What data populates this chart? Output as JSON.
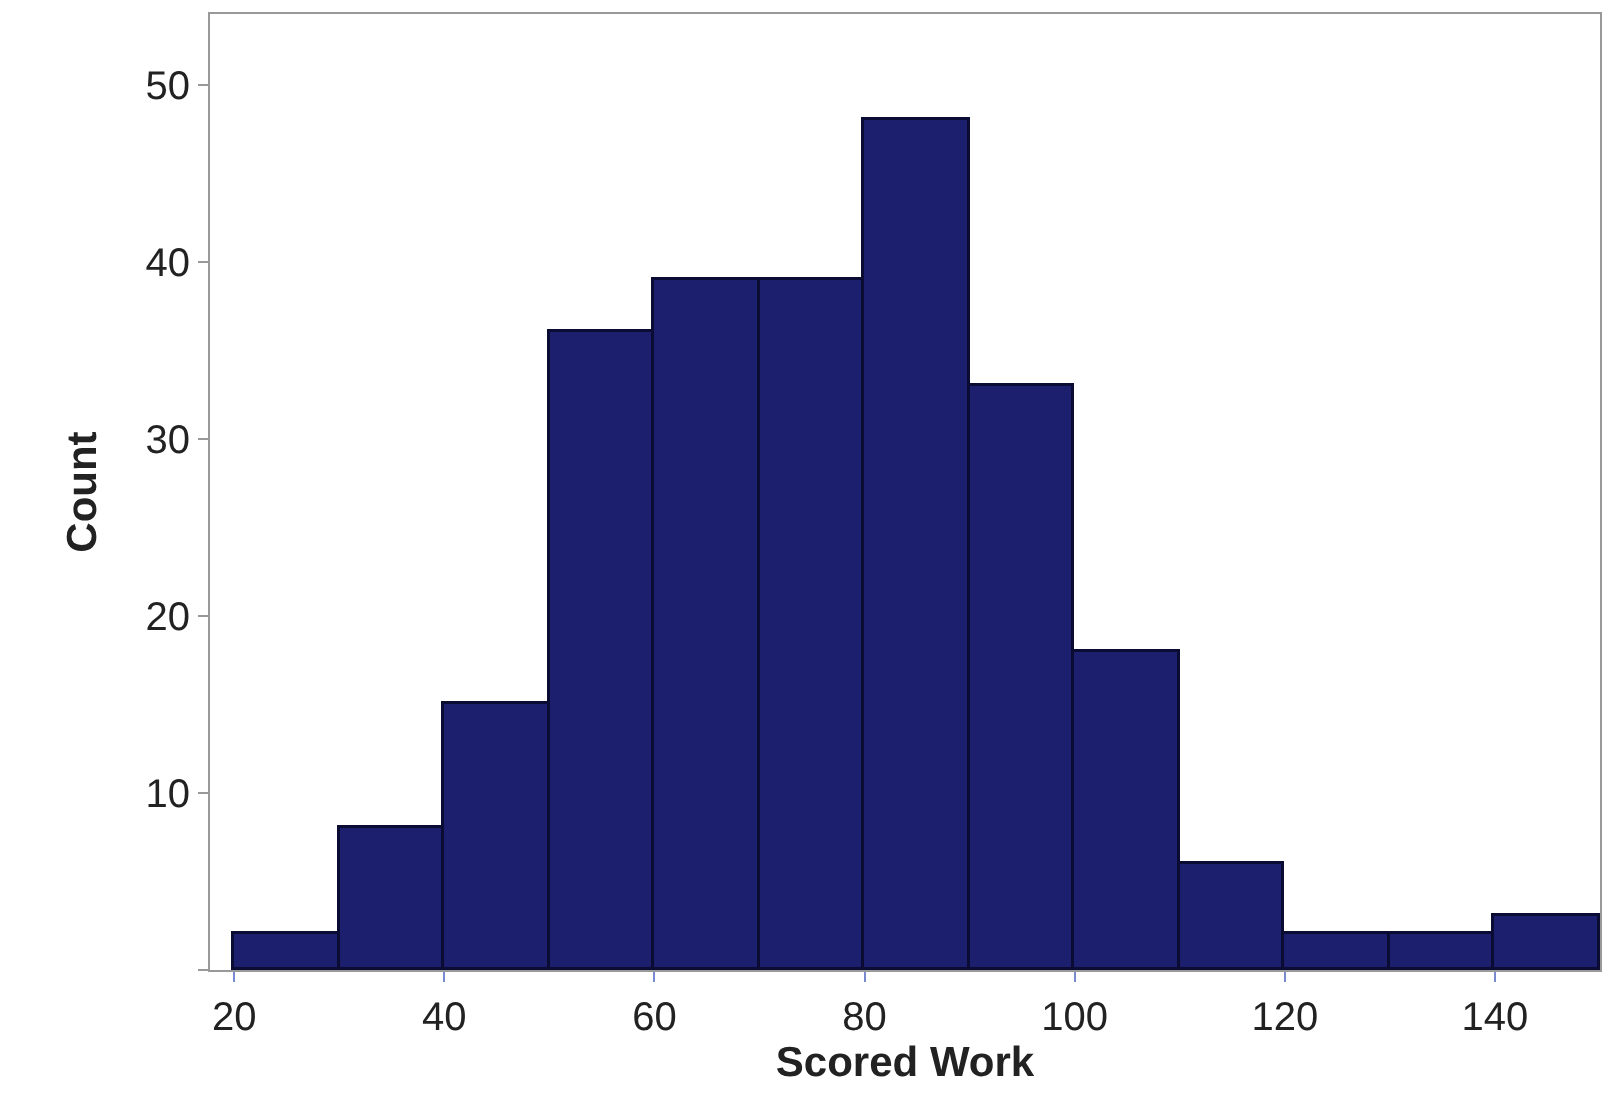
{
  "chart_data": {
    "type": "histogram",
    "xlabel": "Scored Work",
    "ylabel": "Count",
    "bins": [
      20,
      30,
      40,
      50,
      60,
      70,
      80,
      90,
      100,
      110,
      120,
      130,
      140,
      150
    ],
    "values": [
      2,
      8,
      15,
      36,
      39,
      39,
      48,
      33,
      18,
      6,
      2,
      2,
      3
    ],
    "color": "#1b1f6e",
    "xlim": [
      17.7,
      150
    ],
    "xticks": [
      20,
      40,
      60,
      80,
      100,
      120,
      140
    ],
    "ylim": [
      0,
      54
    ],
    "yticks": [
      {
        "value": 0,
        "label": null
      },
      10,
      20,
      30,
      40,
      50
    ],
    "grid": false
  }
}
